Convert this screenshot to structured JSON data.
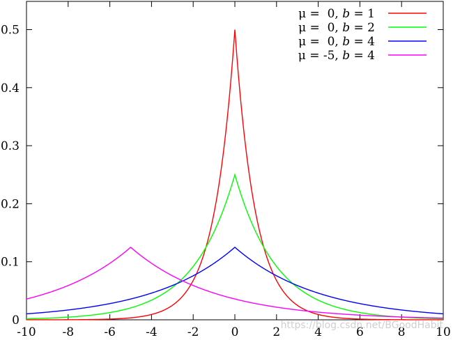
{
  "chart_data": {
    "type": "line",
    "title": "",
    "xlabel": "",
    "ylabel": "",
    "xlim": [
      -10,
      10
    ],
    "ylim": [
      0,
      0.55
    ],
    "xticks": [
      -10,
      -8,
      -6,
      -4,
      -2,
      0,
      2,
      4,
      6,
      8,
      10
    ],
    "yticks": [
      0,
      0.1,
      0.2,
      0.3,
      0.4,
      0.5
    ],
    "xtick_labels": [
      "-10",
      "-8",
      "-6",
      "-4",
      "-2",
      "0",
      "2",
      "4",
      "6",
      "8",
      "10"
    ],
    "ytick_labels": [
      "0",
      "0.1",
      "0.2",
      "0.3",
      "0.4",
      "0.5"
    ],
    "grid": false,
    "legend_position": "top-right",
    "function": "Laplace probability density",
    "series": [
      {
        "mu": 0,
        "b": 1,
        "color": "#ff0000",
        "label_prefix": "μ =  0, ",
        "label_b": "b",
        "label_suffix": " = 1"
      },
      {
        "mu": 0,
        "b": 2,
        "color": "#00ff00",
        "label_prefix": "μ =  0, ",
        "label_b": "b",
        "label_suffix": " = 2"
      },
      {
        "mu": 0,
        "b": 4,
        "color": "#0000ff",
        "label_prefix": "μ =  0, ",
        "label_b": "b",
        "label_suffix": " = 4"
      },
      {
        "mu": -5,
        "b": 4,
        "color": "#ff00ff",
        "label_prefix": "μ = -5, ",
        "label_b": "b",
        "label_suffix": " = 4"
      }
    ]
  },
  "watermark": "https://blog.csdn.net/BGoodHabit"
}
